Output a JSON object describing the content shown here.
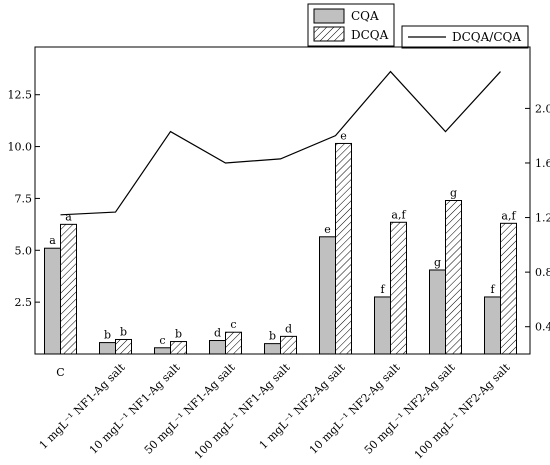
{
  "chart_data": {
    "type": "bar",
    "categories": [
      "C",
      "1 mgL⁻¹ NF1-Ag salt",
      "10 mgL⁻¹ NF1-Ag salt",
      "50 mgL⁻¹ NF1-Ag salt",
      "100 mgL⁻¹ NF1-Ag salt",
      "1 mgL⁻¹ NF2-Ag salt",
      "10 mgL⁻¹ NF2-Ag salt",
      "50 mgL⁻¹ NF2-Ag salt",
      "100 mgL⁻¹ NF2-Ag salt"
    ],
    "series": [
      {
        "name": "CQA",
        "kind": "bar",
        "axis": "left",
        "color": "#c0c0c0",
        "values": [
          5.1,
          0.55,
          0.3,
          0.65,
          0.5,
          5.65,
          2.75,
          4.05,
          2.75
        ],
        "labels": [
          "a",
          "b",
          "c",
          "d",
          "b",
          "e",
          "f",
          "g",
          "f"
        ]
      },
      {
        "name": "DCQA",
        "kind": "bar",
        "axis": "left",
        "pattern": "hatched",
        "color": "#ffffff",
        "values": [
          6.25,
          0.7,
          0.6,
          1.05,
          0.85,
          10.15,
          6.35,
          7.4,
          6.3
        ],
        "labels": [
          "a",
          "b",
          "b",
          "c",
          "d",
          "e",
          "a,f",
          "g",
          "a,f"
        ]
      },
      {
        "name": "DCQA/CQA",
        "kind": "line",
        "axis": "right",
        "color": "#000000",
        "values": [
          1.22,
          1.24,
          1.83,
          1.6,
          1.63,
          1.8,
          2.27,
          1.83,
          2.27
        ]
      }
    ],
    "y_left": {
      "ylim": [
        0,
        14.8
      ],
      "ticks": [
        2.5,
        5.0,
        7.5,
        10.0,
        12.5
      ],
      "tick_labels": [
        "2.5",
        "5.0",
        "7.5",
        "10.0",
        "12.5"
      ]
    },
    "y_right": {
      "ylim": [
        0.2,
        2.45
      ],
      "ticks": [
        0.4,
        0.8,
        1.2,
        1.6,
        2.0
      ],
      "tick_labels": [
        "0.4",
        "0.8",
        "1.2",
        "1.6",
        "2.0"
      ]
    },
    "xlabel": "",
    "ylabel": "",
    "grid": false,
    "legend": [
      {
        "name": "CQA",
        "placement": "top-center"
      },
      {
        "name": "DCQA",
        "placement": "top-center"
      },
      {
        "name": "DCQA/CQA",
        "placement": "top-right"
      }
    ]
  }
}
